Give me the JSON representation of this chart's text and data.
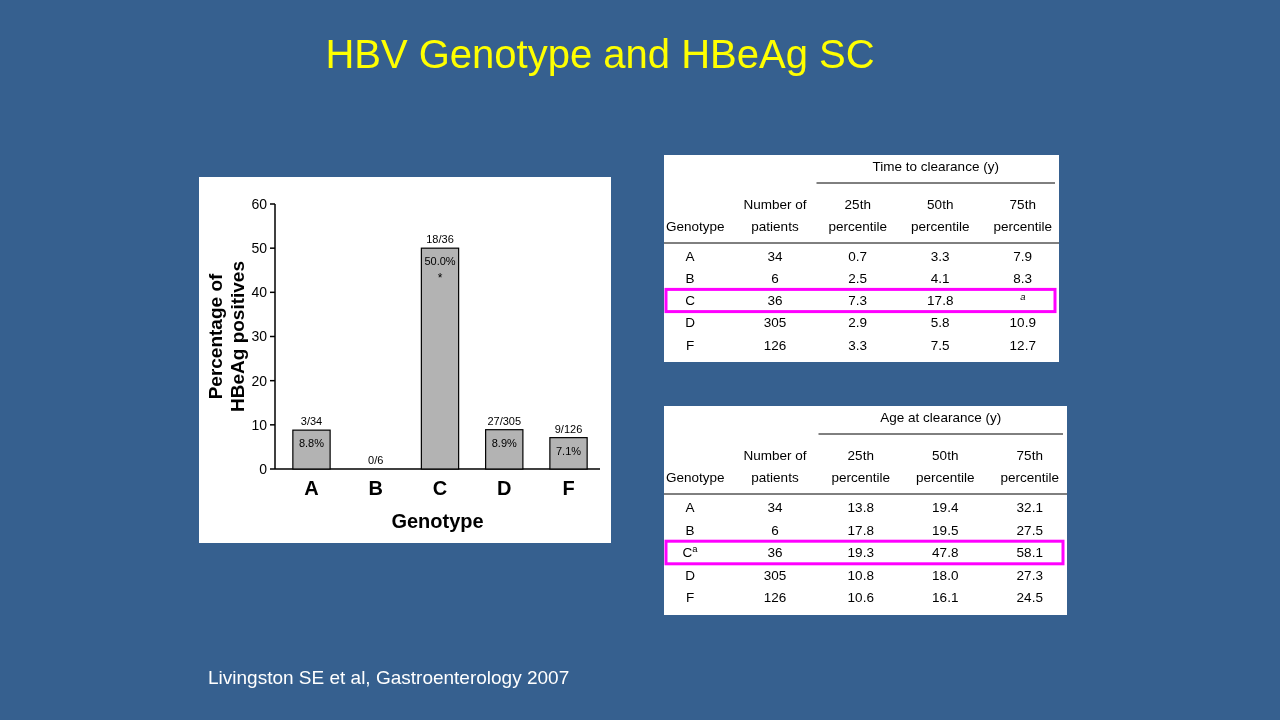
{
  "chart_data": [
    {
      "type": "bar",
      "title": "HBV Genotype and HBeAg SC",
      "xlabel": "Genotype",
      "ylabel": "Percentage of HBeAg positives",
      "categories": [
        "A",
        "B",
        "C",
        "D",
        "F"
      ],
      "values": [
        8.8,
        0,
        50.0,
        8.9,
        7.1
      ],
      "value_labels": [
        "8.8%",
        null,
        "50.0%",
        "8.9%",
        "7.1%"
      ],
      "color": "#b3b3b3",
      "ylim": [
        0,
        60
      ],
      "yticks": [
        0,
        10,
        20,
        30,
        40,
        50,
        60
      ],
      "annotations": [
        {
          "text": "3/34",
          "x": "A",
          "y": 8.8
        },
        {
          "text": "0/6",
          "x": "B",
          "y": 0
        },
        {
          "text": "18/36",
          "x": "C",
          "y": 50.0
        },
        {
          "text": "27/305",
          "x": "D",
          "y": 8.9
        },
        {
          "text": "9/126",
          "x": "F",
          "y": 7.1
        },
        "*",
        "Livingston SE et al, Gastroenterology 2007"
      ]
    },
    {
      "type": "other",
      "title": "Time to clearance (y)",
      "ylabel": "Genotype",
      "categories": [
        "Number of patients",
        "25th percentile",
        "50th percentile",
        "75th percentile"
      ],
      "y_categories": [
        "A",
        "B",
        "C",
        "D",
        "F"
      ],
      "cell_labels": [
        [
          "34",
          "0.7",
          "3.3",
          "7.9"
        ],
        [
          "6",
          "2.5",
          "4.1",
          "8.3"
        ],
        [
          "36",
          "7.3",
          "17.8",
          "$^{a}$"
        ],
        [
          "305",
          "2.9",
          "5.8",
          "10.9"
        ],
        [
          "126",
          "3.3",
          "7.5",
          "12.7"
        ]
      ]
    },
    {
      "type": "other",
      "title": "Age at clearance (y)",
      "ylabel": "Genotype",
      "categories": [
        "Number of patients",
        "25th percentile",
        "50th percentile",
        "75th percentile"
      ],
      "y_categories": [
        "A",
        "B",
        "C$^{a}$",
        "D",
        "F"
      ],
      "cell_labels": [
        [
          "34",
          "13.8",
          "19.4",
          "32.1"
        ],
        [
          "6",
          "17.8",
          "19.5",
          "27.5"
        ],
        [
          "36",
          "19.3",
          "47.8",
          "58.1"
        ],
        [
          "305",
          "10.8",
          "18.0",
          "27.3"
        ],
        [
          "126",
          "10.6",
          "16.1",
          "24.5"
        ]
      ]
    }
  ]
}
